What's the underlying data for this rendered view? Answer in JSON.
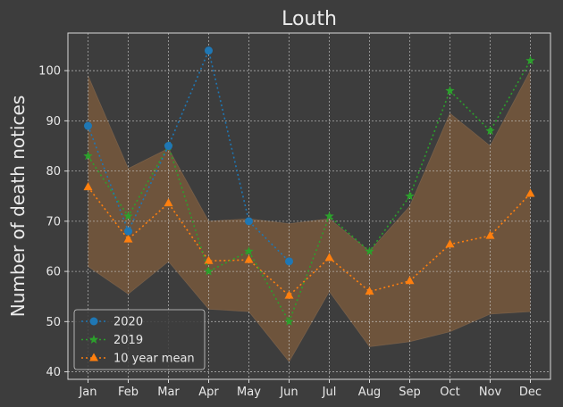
{
  "chart_data": {
    "type": "line",
    "title": "Louth",
    "xlabel": "",
    "ylabel": "Number of death notices",
    "categories": [
      "Jan",
      "Feb",
      "Mar",
      "Apr",
      "May",
      "Jun",
      "Jul",
      "Aug",
      "Sep",
      "Oct",
      "Nov",
      "Dec"
    ],
    "ylim": [
      38.5,
      107.5
    ],
    "yticks": [
      40,
      50,
      60,
      70,
      80,
      90,
      100
    ],
    "grid": true,
    "legend_position": "lower-left",
    "band": {
      "min": [
        61,
        55.5,
        62,
        52.5,
        52,
        42,
        56,
        45,
        46,
        48,
        51.5,
        52
      ],
      "max": [
        99,
        80.5,
        84.5,
        70,
        70.5,
        69.5,
        70.5,
        64,
        73,
        91.5,
        85,
        100
      ],
      "color": "#7b5a3c"
    },
    "series": [
      {
        "name": "2020",
        "color": "#1f77b4",
        "marker": "circle",
        "values": [
          89,
          68,
          85,
          104,
          70,
          62,
          null,
          null,
          null,
          null,
          null,
          null
        ]
      },
      {
        "name": "2019",
        "color": "#2ca02c",
        "marker": "star",
        "values": [
          83,
          71,
          85,
          60,
          64,
          50,
          71,
          64,
          75,
          96,
          88,
          102
        ]
      },
      {
        "name": "10 year mean",
        "color": "#ff7f0e",
        "marker": "triangle",
        "values": [
          76.8,
          66.4,
          73.6,
          62.1,
          62.3,
          55.2,
          62.7,
          56,
          58.1,
          65.4,
          67.1,
          75.5
        ]
      }
    ]
  }
}
